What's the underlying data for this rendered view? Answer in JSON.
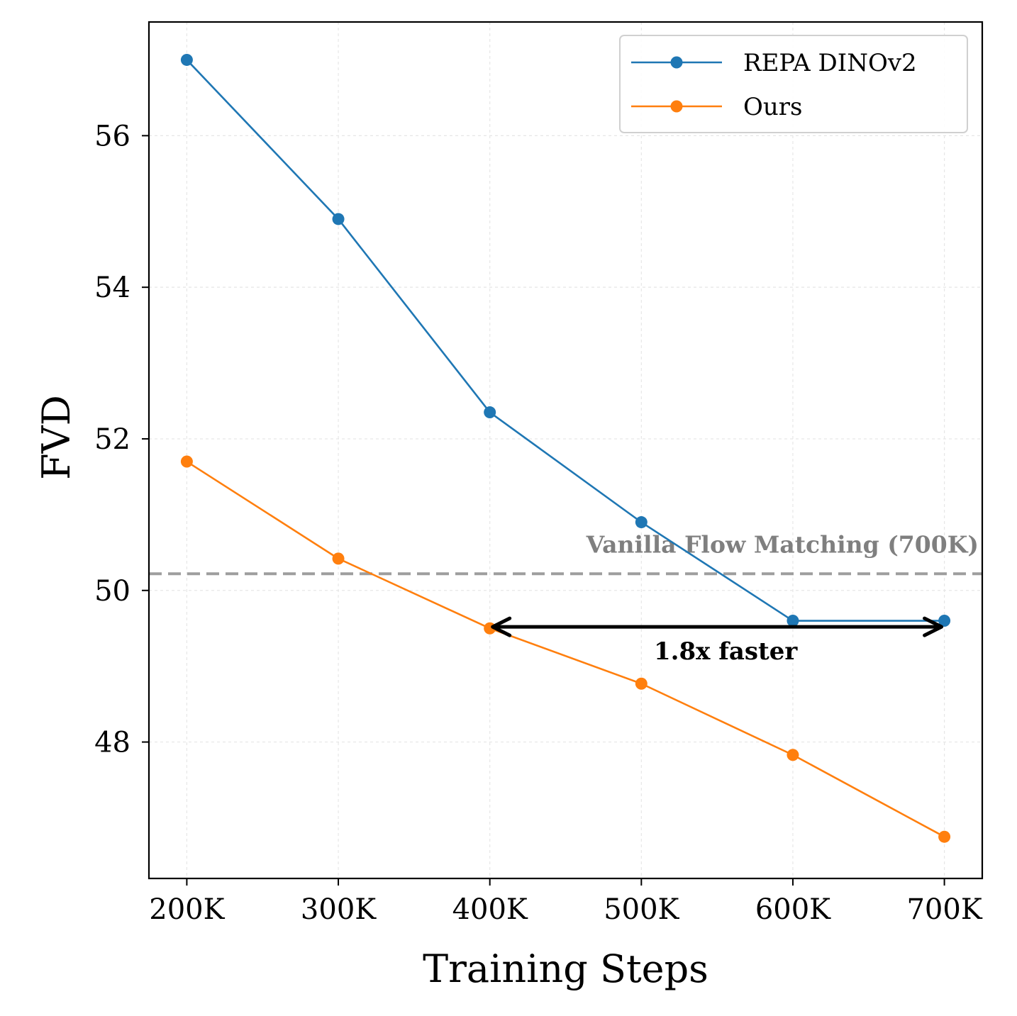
{
  "chart_data": {
    "type": "line",
    "x": [
      "200K",
      "300K",
      "400K",
      "500K",
      "600K",
      "700K"
    ],
    "x_values": [
      200,
      300,
      400,
      500,
      600,
      700
    ],
    "xlim": [
      175,
      725
    ],
    "ylim": [
      46.2,
      57.5
    ],
    "yticks": [
      48,
      50,
      52,
      54,
      56
    ],
    "ytick_labels": [
      "48",
      "50",
      "52",
      "54",
      "56"
    ],
    "xlabel": "Training Steps",
    "ylabel": "FVD",
    "grid": true,
    "legend_position": "top-right",
    "series": [
      {
        "name": "REPA DINOv2",
        "color": "#1f77b4",
        "values": [
          57.0,
          54.9,
          52.35,
          50.9,
          49.6,
          49.6
        ]
      },
      {
        "name": "Ours",
        "color": "#ff7f0e",
        "values": [
          51.7,
          50.42,
          49.5,
          48.77,
          47.83,
          46.75
        ]
      }
    ],
    "reference_line": {
      "label": "Vanilla Flow Matching (700K)",
      "value": 50.22,
      "color": "#9e9e9e"
    },
    "annotation": {
      "label": "1.8x faster",
      "x_start": 400,
      "x_end": 700,
      "y": 49.52
    }
  }
}
